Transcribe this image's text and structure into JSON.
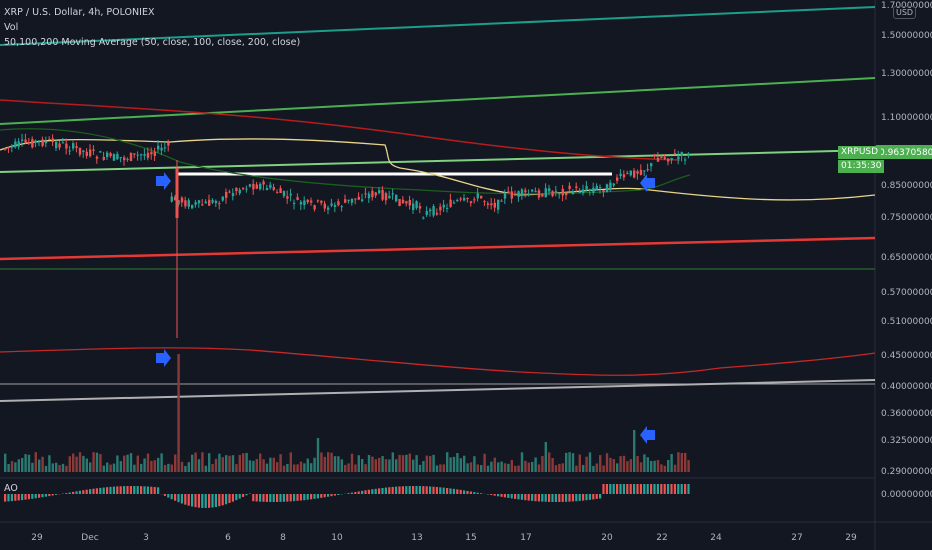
{
  "header": {
    "symbol_line": "XRP / U.S. Dollar, 4h, POLONIEX",
    "volume_label": "Vol",
    "ma_label": "50,100,200 Moving Average (50, close, 100, close, 200, close)",
    "ao_label": "AO",
    "currency": "USD"
  },
  "price_tag": {
    "symbol": "XRPUSD",
    "price": "0.96370580",
    "countdown": "01:35:30"
  },
  "colors": {
    "background": "#131722",
    "up": "#26a69a",
    "down": "#ef5350",
    "teal_line": "#1e9c8c",
    "green_line": "#4caf50",
    "red_line": "#e53935",
    "white_line": "#ffffff",
    "arrow": "#2962ff"
  },
  "chart_data": {
    "type": "candlestick",
    "price_axis_ticks": [
      "0.29000000",
      "0.32500000",
      "0.36000000",
      "0.40000000",
      "0.45000000",
      "0.51000000",
      "0.57000000",
      "0.65000000",
      "0.75000000",
      "0.85000000",
      "0.96370580",
      "1.10000000",
      "1.30000000",
      "1.50000000",
      "1.70000000"
    ],
    "x_ticks": [
      "29",
      "Dec",
      "3",
      "6",
      "8",
      "10",
      "13",
      "15",
      "17",
      "20",
      "22",
      "24",
      "27",
      "29"
    ],
    "ao_axis_tick": "0.00000000",
    "last_price": 0.9637058
  }
}
